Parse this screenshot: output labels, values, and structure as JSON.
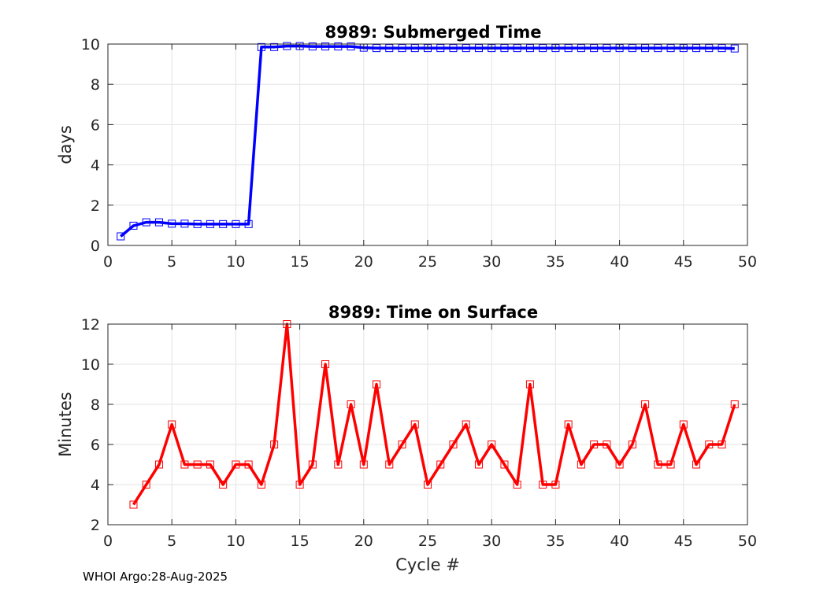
{
  "chart_data": [
    {
      "type": "line",
      "title": "8989: Submerged Time",
      "xlabel": "",
      "ylabel": "days",
      "xlim": [
        0,
        50
      ],
      "ylim": [
        0,
        10
      ],
      "xticks": [
        0,
        5,
        10,
        15,
        20,
        25,
        30,
        35,
        40,
        45,
        50
      ],
      "yticks": [
        0,
        2,
        4,
        6,
        8,
        10
      ],
      "grid": true,
      "color": "#0000ff",
      "marker": "square",
      "series": [
        {
          "name": "Submerged Time",
          "x": [
            1,
            2,
            3,
            4,
            5,
            6,
            7,
            8,
            9,
            10,
            11,
            12,
            13,
            14,
            15,
            16,
            17,
            18,
            19,
            20,
            21,
            22,
            23,
            24,
            25,
            26,
            27,
            28,
            29,
            30,
            31,
            32,
            33,
            34,
            35,
            36,
            37,
            38,
            39,
            40,
            41,
            42,
            43,
            44,
            45,
            46,
            47,
            48,
            49
          ],
          "values": [
            0.45,
            0.98,
            1.15,
            1.15,
            1.08,
            1.08,
            1.06,
            1.06,
            1.06,
            1.06,
            1.06,
            9.85,
            9.85,
            9.9,
            9.9,
            9.88,
            9.88,
            9.88,
            9.88,
            9.82,
            9.8,
            9.8,
            9.8,
            9.8,
            9.8,
            9.8,
            9.8,
            9.8,
            9.8,
            9.8,
            9.8,
            9.8,
            9.8,
            9.8,
            9.8,
            9.8,
            9.8,
            9.8,
            9.8,
            9.8,
            9.8,
            9.8,
            9.8,
            9.8,
            9.8,
            9.8,
            9.8,
            9.8,
            9.78
          ]
        }
      ]
    },
    {
      "type": "line",
      "title": "8989: Time on Surface",
      "xlabel": "Cycle #",
      "ylabel": "Minutes",
      "xlim": [
        0,
        50
      ],
      "ylim": [
        2,
        12
      ],
      "xticks": [
        0,
        5,
        10,
        15,
        20,
        25,
        30,
        35,
        40,
        45,
        50
      ],
      "yticks": [
        2,
        4,
        6,
        8,
        10,
        12
      ],
      "grid": true,
      "color": "#ff0000",
      "marker": "square",
      "series": [
        {
          "name": "Time on Surface",
          "x": [
            2,
            3,
            4,
            5,
            6,
            7,
            8,
            9,
            10,
            11,
            12,
            13,
            14,
            15,
            16,
            17,
            18,
            19,
            20,
            21,
            22,
            23,
            24,
            25,
            26,
            27,
            28,
            29,
            30,
            31,
            32,
            33,
            34,
            35,
            36,
            37,
            38,
            39,
            40,
            41,
            42,
            43,
            44,
            45,
            46,
            47,
            48,
            49
          ],
          "values": [
            3,
            4,
            5,
            7,
            5,
            5,
            5,
            4,
            5,
            5,
            4,
            6,
            12,
            4,
            5,
            10,
            5,
            8,
            5,
            9,
            5,
            6,
            7,
            4,
            5,
            6,
            7,
            5,
            6,
            5,
            4,
            9,
            4,
            4,
            7,
            5,
            6,
            6,
            5,
            6,
            8,
            5,
            5,
            7,
            5,
            6,
            6,
            8
          ]
        }
      ]
    }
  ],
  "footer": "WHOI Argo:28-Aug-2025"
}
